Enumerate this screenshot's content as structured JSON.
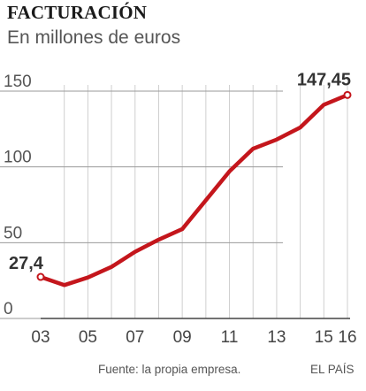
{
  "chart_data": {
    "type": "line",
    "title": "FACTURACIÓN",
    "subtitle": "En millones de euros",
    "x": [
      2003,
      2004,
      2005,
      2006,
      2007,
      2008,
      2009,
      2010,
      2011,
      2012,
      2013,
      2014,
      2015,
      2016
    ],
    "xticks": [
      {
        "year": 2003,
        "label": "03"
      },
      {
        "year": 2005,
        "label": "05"
      },
      {
        "year": 2007,
        "label": "07"
      },
      {
        "year": 2009,
        "label": "09"
      },
      {
        "year": 2011,
        "label": "11"
      },
      {
        "year": 2013,
        "label": "13"
      },
      {
        "year": 2015,
        "label": "15"
      },
      {
        "year": 2016,
        "label": "16"
      }
    ],
    "series": [
      {
        "values": [
          27.4,
          22,
          27,
          34,
          44,
          52,
          59,
          78,
          97,
          112,
          118,
          126,
          141,
          147.45
        ]
      }
    ],
    "ylim": [
      0,
      150
    ],
    "yticks": [
      0,
      50,
      100,
      150
    ],
    "ytick_labels": [
      "0",
      "50",
      "100",
      "150"
    ],
    "annotations": {
      "first": "27,4",
      "last": "147,45"
    },
    "grid": "vertical",
    "color": "#c4161c"
  },
  "footer": {
    "source": "Fuente: la propia empresa.",
    "brand": "EL PAÍS"
  }
}
